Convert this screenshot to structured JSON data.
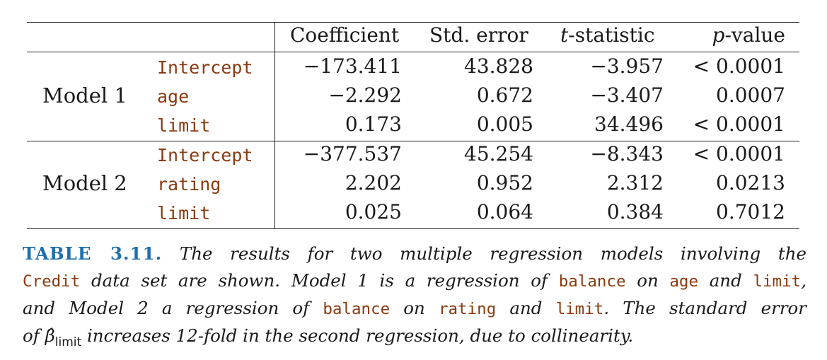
{
  "table": {
    "headers": {
      "coefficient": "Coefficient",
      "std_error": "Std. error",
      "t_italic": "t",
      "t_rest": "-statistic",
      "p_italic": "p",
      "p_rest": "-value"
    },
    "models": [
      {
        "label": "Model 1",
        "rows": [
          {
            "term": "Intercept",
            "coefficient": "−173.411",
            "std_error": "43.828",
            "t_statistic": "−3.957",
            "p_value": "< 0.0001"
          },
          {
            "term": "age",
            "coefficient": "−2.292",
            "std_error": "0.672",
            "t_statistic": "−3.407",
            "p_value": "0.0007"
          },
          {
            "term": "limit",
            "coefficient": "0.173",
            "std_error": "0.005",
            "t_statistic": "34.496",
            "p_value": "< 0.0001"
          }
        ]
      },
      {
        "label": "Model 2",
        "rows": [
          {
            "term": "Intercept",
            "coefficient": "−377.537",
            "std_error": "45.254",
            "t_statistic": "−8.343",
            "p_value": "< 0.0001"
          },
          {
            "term": "rating",
            "coefficient": "2.202",
            "std_error": "0.952",
            "t_statistic": "2.312",
            "p_value": "0.0213"
          },
          {
            "term": "limit",
            "coefficient": "0.025",
            "std_error": "0.064",
            "t_statistic": "0.384",
            "p_value": "0.7012"
          }
        ]
      }
    ]
  },
  "caption": {
    "label": "TABLE 3.11.",
    "l1_a": " The results for two multiple regression models involving the",
    "l2_code1": "Credit",
    "l2_a": " data set are shown. Model 1 is a regression of ",
    "l2_code2": "balance",
    "l2_b": " on ",
    "l2_code3": "age",
    "l2_c": " and ",
    "l2_code4": "limit",
    "l2_d": ",",
    "l3_a": "and Model 2 a regression of ",
    "l3_code1": "balance",
    "l3_b": " on ",
    "l3_code2": "rating",
    "l3_c": " and ",
    "l3_code3": "limit",
    "l3_d": ". The standard error",
    "l4_a": "of ",
    "l4_beta": "β̂",
    "l4_sub": "limit",
    "l4_b": " increases 12-fold in the second regression, due to collinearity."
  }
}
